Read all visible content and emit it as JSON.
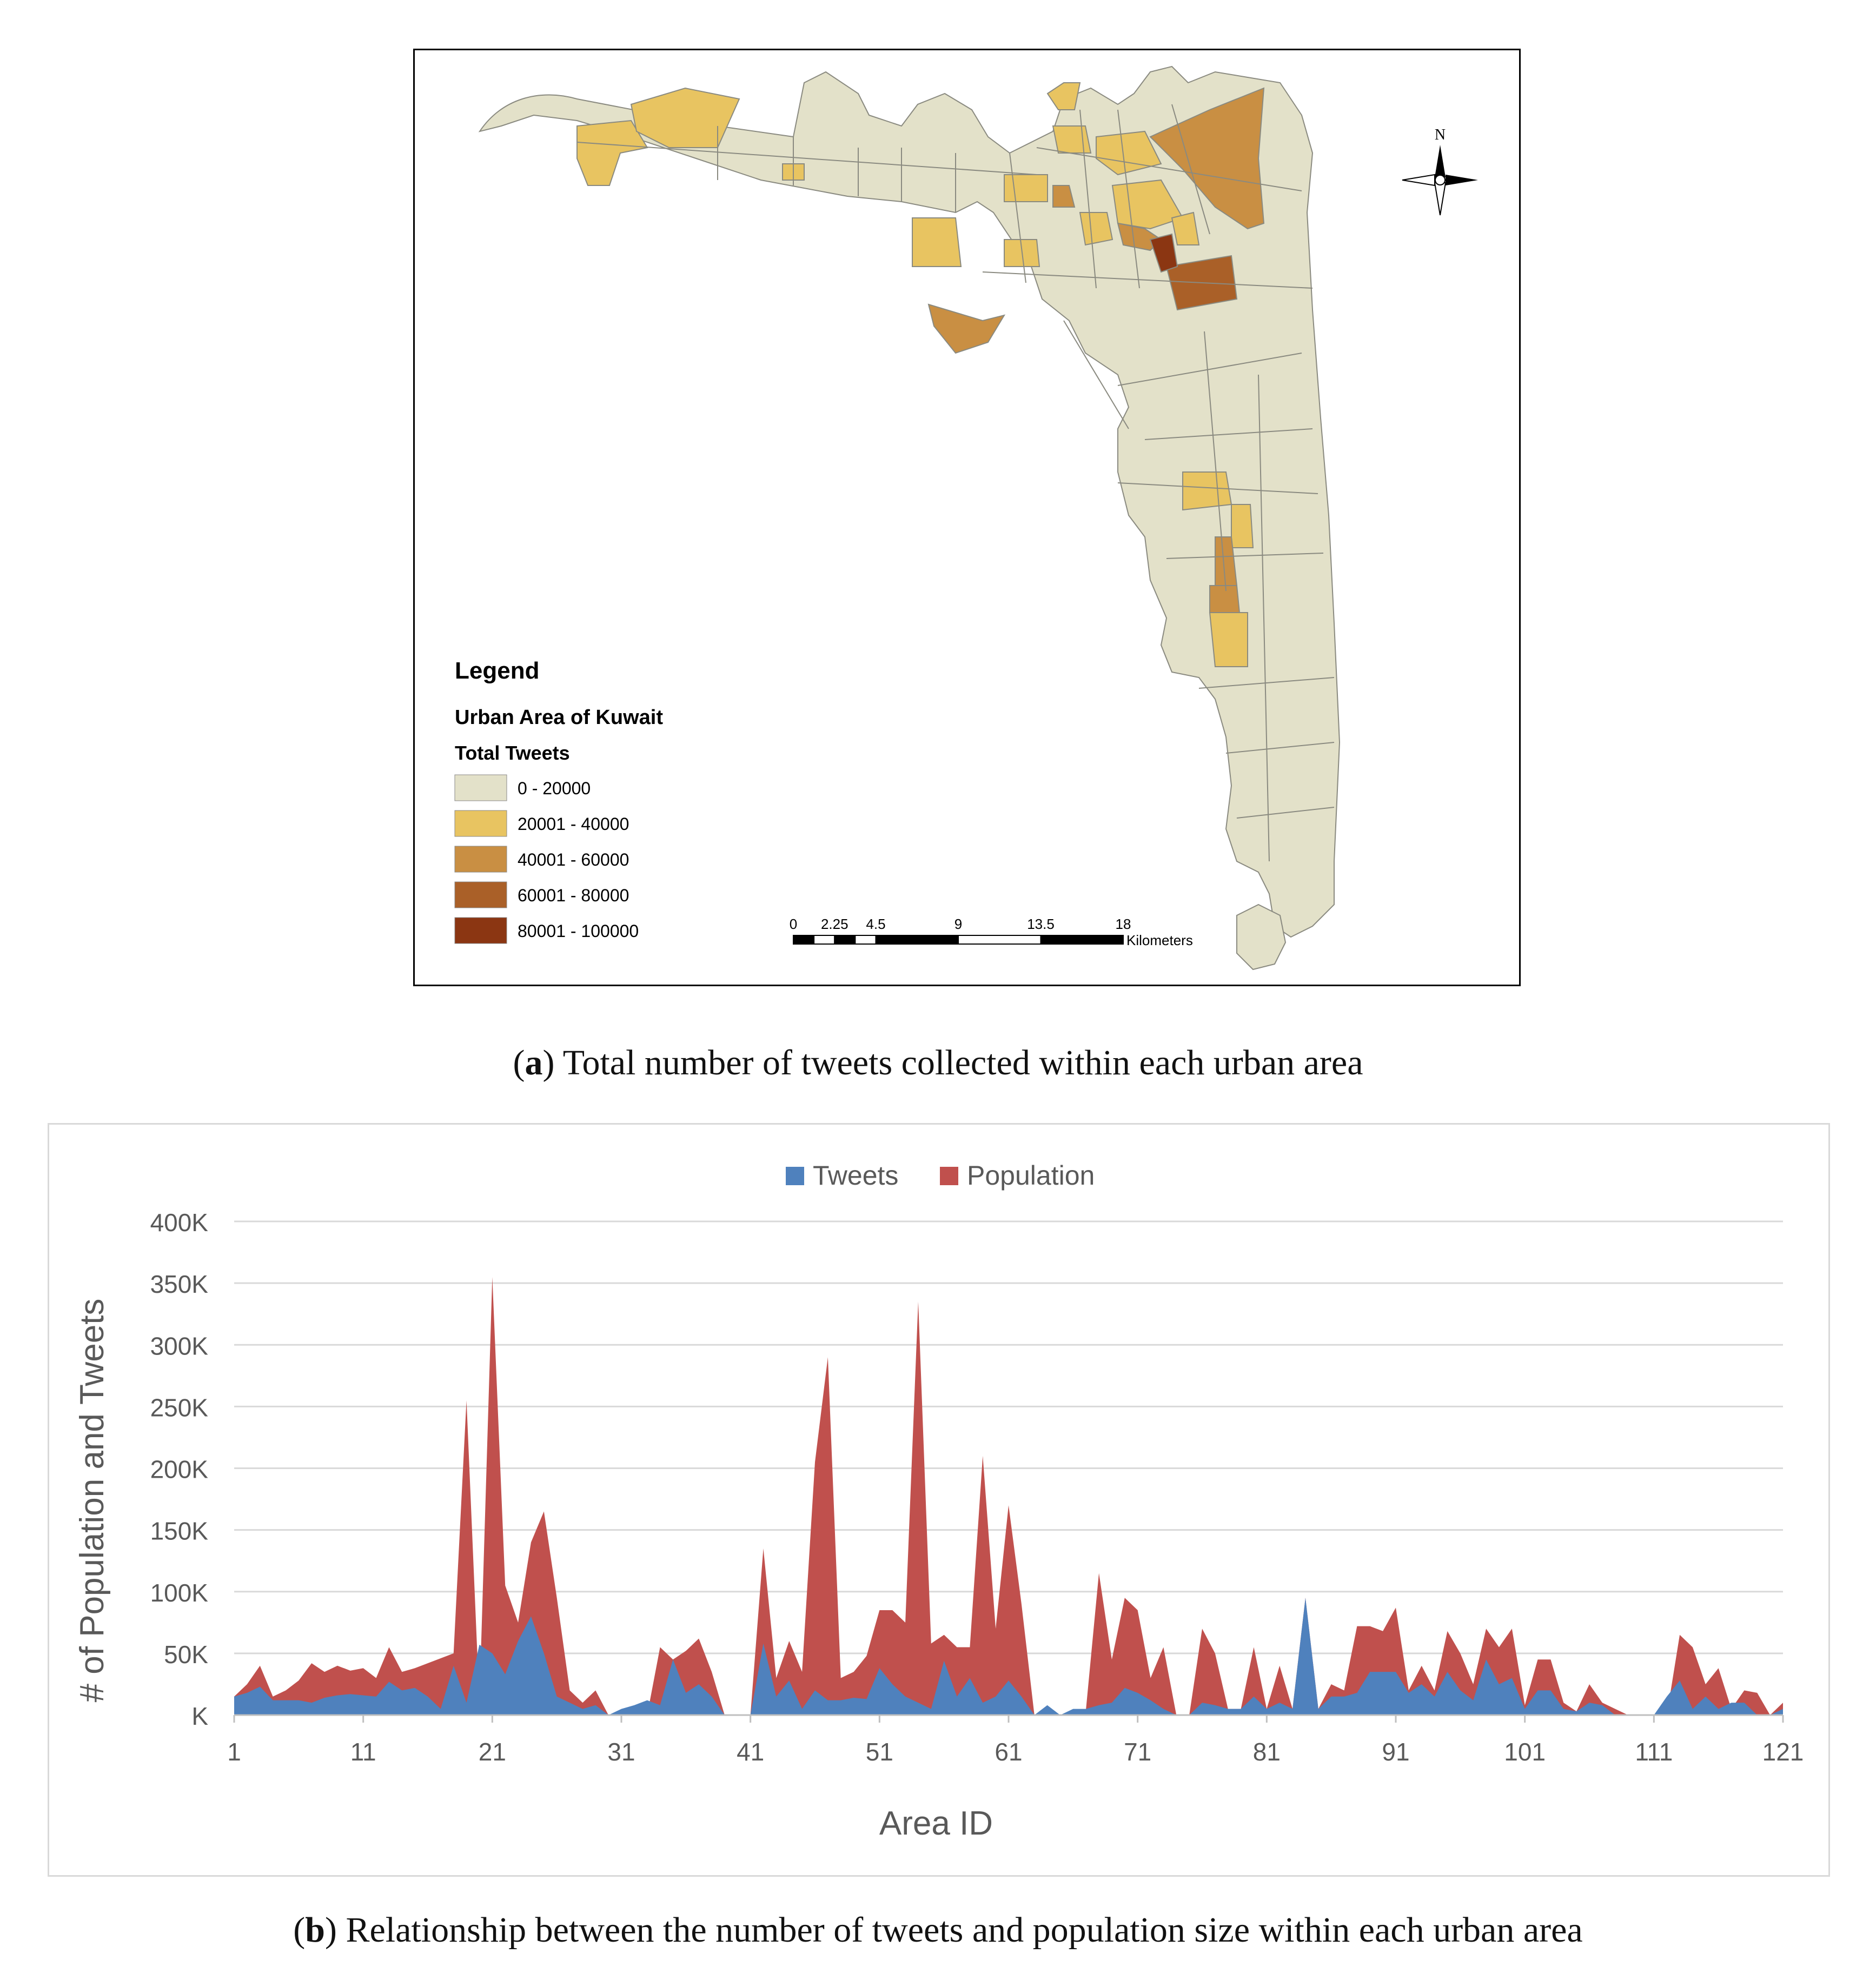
{
  "map": {
    "legend_title": "Legend",
    "layer_name": "Urban Area of Kuwait",
    "field_name": "Total Tweets",
    "classes": [
      {
        "label": "0 - 20000",
        "color": "#e3e1c9"
      },
      {
        "label": "20001 - 40000",
        "color": "#e8c461"
      },
      {
        "label": "40001 - 60000",
        "color": "#c98f43"
      },
      {
        "label": "60001 - 80000",
        "color": "#aa6028"
      },
      {
        "label": "80001 - 100000",
        "color": "#8b3612"
      }
    ],
    "north_label": "N",
    "scalebar": {
      "ticks": [
        "0",
        "2.25",
        "4.5",
        "9",
        "13.5",
        "18"
      ],
      "tick_values": [
        0,
        2.25,
        4.5,
        9,
        13.5,
        18
      ],
      "unit": "Kilometers"
    },
    "colors": {
      "boundary": "#8a8a80",
      "outline": "#000000"
    }
  },
  "caption_a": {
    "letter": "a",
    "text": ") Total number of tweets collected within each urban area"
  },
  "caption_b": {
    "letter": "b",
    "text": ") Relationship between the number of tweets and population size within each urban area"
  },
  "paren_open": "(",
  "chart_data": {
    "type": "area",
    "stacked": false,
    "xlabel": "Area ID",
    "ylabel": "# of Population and Tweets",
    "ylim": [
      0,
      400000
    ],
    "yticks": [
      {
        "value": 0,
        "label": "K"
      },
      {
        "value": 50000,
        "label": "50K"
      },
      {
        "value": 100000,
        "label": "100K"
      },
      {
        "value": 150000,
        "label": "150K"
      },
      {
        "value": 200000,
        "label": "200K"
      },
      {
        "value": 250000,
        "label": "250K"
      },
      {
        "value": 300000,
        "label": "300K"
      },
      {
        "value": 350000,
        "label": "350K"
      },
      {
        "value": 400000,
        "label": "400K"
      }
    ],
    "xticks": [
      1,
      11,
      21,
      31,
      41,
      51,
      61,
      71,
      81,
      91,
      101,
      111,
      121
    ],
    "xlim": [
      1,
      121
    ],
    "grid": true,
    "legend_position": "top-center",
    "x": [
      1,
      2,
      3,
      4,
      5,
      6,
      7,
      8,
      9,
      10,
      11,
      12,
      13,
      14,
      15,
      16,
      17,
      18,
      19,
      20,
      21,
      22,
      23,
      24,
      25,
      26,
      27,
      28,
      29,
      30,
      31,
      32,
      33,
      34,
      35,
      36,
      37,
      38,
      39,
      40,
      41,
      42,
      43,
      44,
      45,
      46,
      47,
      48,
      49,
      50,
      51,
      52,
      53,
      54,
      55,
      56,
      57,
      58,
      59,
      60,
      61,
      62,
      63,
      64,
      65,
      66,
      67,
      68,
      69,
      70,
      71,
      72,
      73,
      74,
      75,
      76,
      77,
      78,
      79,
      80,
      81,
      82,
      83,
      84,
      85,
      86,
      87,
      88,
      89,
      90,
      91,
      92,
      93,
      94,
      95,
      96,
      97,
      98,
      99,
      100,
      101,
      102,
      103,
      104,
      105,
      106,
      107,
      108,
      109,
      110,
      111,
      112,
      113,
      114,
      115,
      116,
      117,
      118,
      119,
      120,
      121
    ],
    "series": [
      {
        "name": "Population",
        "color": "#c0504d",
        "values": [
          15000,
          25000,
          40000,
          15000,
          20000,
          28000,
          42000,
          35000,
          40000,
          36000,
          38000,
          30000,
          55000,
          35000,
          38000,
          42000,
          46000,
          50000,
          255000,
          10000,
          355000,
          105000,
          75000,
          140000,
          165000,
          95000,
          20000,
          10000,
          20000,
          0,
          0,
          0,
          0,
          55000,
          45000,
          52000,
          62000,
          35000,
          0,
          0,
          0,
          135000,
          30000,
          60000,
          35000,
          205000,
          290000,
          30000,
          35000,
          48000,
          85000,
          85000,
          75000,
          335000,
          58000,
          65000,
          55000,
          55000,
          210000,
          70000,
          170000,
          90000,
          0,
          5000,
          0,
          0,
          5000,
          115000,
          45000,
          95000,
          85000,
          30000,
          55000,
          0,
          0,
          70000,
          50000,
          5000,
          5000,
          55000,
          5000,
          40000,
          5000,
          95000,
          5000,
          25000,
          20000,
          72000,
          72000,
          68000,
          87000,
          20000,
          40000,
          20000,
          68000,
          50000,
          25000,
          70000,
          55000,
          70000,
          8000,
          45000,
          45000,
          10000,
          3000,
          25000,
          10000,
          5000,
          0,
          0,
          0,
          0,
          65000,
          55000,
          25000,
          38000,
          5000,
          20000,
          18000,
          0,
          10000
        ]
      },
      {
        "name": "Tweets",
        "color": "#4f81bd",
        "values": [
          15000,
          18000,
          23000,
          12000,
          12000,
          12000,
          10000,
          14000,
          16000,
          17000,
          16000,
          15000,
          27000,
          20000,
          22000,
          15000,
          5000,
          40000,
          10000,
          57000,
          50000,
          33000,
          60000,
          80000,
          50000,
          15000,
          10000,
          5000,
          8000,
          0,
          5000,
          8000,
          12000,
          8000,
          45000,
          18000,
          25000,
          15000,
          0,
          0,
          0,
          58000,
          15000,
          28000,
          5000,
          20000,
          12000,
          12000,
          14000,
          13000,
          38000,
          25000,
          15000,
          10000,
          5000,
          44000,
          15000,
          30000,
          10000,
          15000,
          28000,
          15000,
          0,
          8000,
          0,
          5000,
          5000,
          8000,
          10000,
          22000,
          18000,
          12000,
          5000,
          0,
          0,
          10000,
          8000,
          5000,
          5000,
          15000,
          5000,
          10000,
          5000,
          95000,
          5000,
          15000,
          15000,
          18000,
          35000,
          35000,
          35000,
          18000,
          25000,
          15000,
          35000,
          20000,
          12000,
          45000,
          25000,
          30000,
          5000,
          20000,
          20000,
          5000,
          3000,
          10000,
          8000,
          0,
          0,
          0,
          0,
          15000,
          28000,
          5000,
          15000,
          5000,
          10000,
          10000,
          0,
          0,
          5000
        ]
      }
    ]
  }
}
